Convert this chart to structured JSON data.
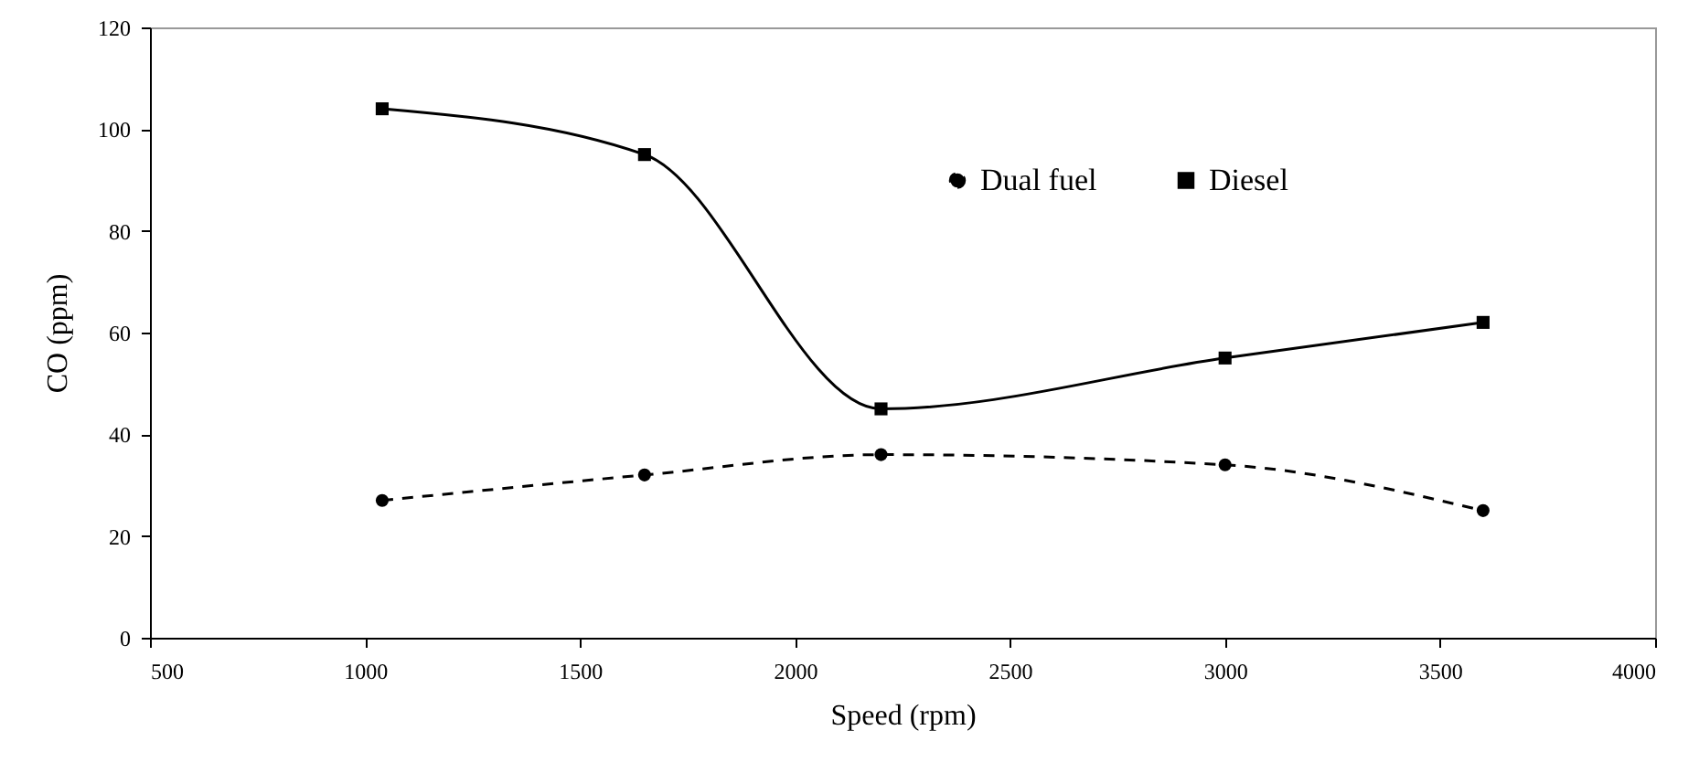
{
  "chart_data": {
    "type": "line",
    "xlabel": "Speed (rpm)",
    "ylabel": "CO (ppm)",
    "x": [
      1040,
      1650,
      2200,
      3000,
      3600
    ],
    "series": [
      {
        "name": "Dual fuel",
        "color": "#000000",
        "values": [
          27,
          32,
          36,
          34,
          25
        ],
        "line_style": "dashed",
        "marker": "circle"
      },
      {
        "name": "Diesel",
        "color": "#000000",
        "values": [
          104,
          95,
          45,
          55,
          62
        ],
        "line_style": "solid",
        "marker": "square"
      }
    ],
    "xlim": [
      500,
      4000
    ],
    "xticks": [
      500,
      1000,
      1500,
      2000,
      2500,
      3000,
      3500,
      4000
    ],
    "ylim": [
      0,
      120
    ],
    "yticks": [
      0,
      20,
      40,
      60,
      80,
      100,
      120
    ],
    "grid": false,
    "legend": "top right"
  }
}
